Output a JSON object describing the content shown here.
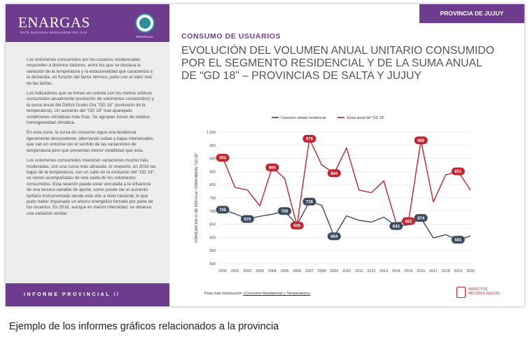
{
  "slide": {
    "logo_text": "ENARGAS",
    "logo_subtext": "ENTE NACIONAL REGULADOR DEL GAS",
    "seal_caption": "PROVINCIAS",
    "province_tab": "PROVINCIA DE JUJUY",
    "section_label": "CONSUMO DE USUARIOS",
    "title": "EVOLUCIÓN DEL VOLUMEN ANUAL UNITARIO CONSUMIDO POR EL SEGMENTO RESIDENCIAL Y DE LA SUMA ANUAL DE “GD 18” – PROVINCIAS DE SALTA Y JUJUY",
    "paragraphs": [
      "Los volúmenes consumidos por los usuarios residenciales responden a distintos factores, entre los que se destaca la variación de la temperatura y la estacionalidad que caracteriza a la demanda, en función del factor térmico, junto con el valor real de las tarifas.",
      "Los indicadores que se toman en cuenta son los metros cúbicos consumidos anualmente (evolución de volúmenes consumidos) y la suma anual del Déficit Grado Día \"GD 18\" (evolución de la temperatura). Un aumento del \"GD 18\" trae aparejado condiciones climáticas más frías. Se agrupan zonas de relativa homogeneidad climática.",
      "En esta zona, la curva de consumo sigue una tendencia ligeramente descendente, alternando subas y bajas interanuales, que van en sintonía con el sentido de las variaciones de temperatura pero que presentan menor volatilidad que esta.",
      "Los volúmenes consumidos muestran variaciones mucho más moderadas, con una curva más alineada. Al respecto, en 2016 las bajas de la temperatura, con un salto en la evolución del \"GD 18\", se vieron acompañadas de una caída de los volúmenes consumidos. Esta relación puede estar vinculada a la influencia de una tercera variable de ajuste, como puede ser el aumento tarifario instrumentado desde este año a nivel nacional, lo que pudo haber impulsado un ahorro energético forzado por parte de los usuarios. En 2018, aunque en menor intensidad, se observa una variación similar."
    ],
    "footer_label": "INFORME PROVINCIAL //",
    "more_info_prefix": "Para más información ",
    "more_info_link": "«Consumo Residencial y Temperatura»",
    "aspects_line1": "ASPECTOS",
    "aspects_line2": "METODOLÓGICOS"
  },
  "page_caption": "Ejemplo de los informes gráficos relacionados a la provincia",
  "colors": {
    "purple": "#6d3c8e",
    "series_consumo": "#3a4a5e",
    "series_gd18": "#c4222d"
  },
  "chart_data": {
    "type": "line",
    "x": [
      2000,
      2001,
      2002,
      2003,
      2004,
      2005,
      2006,
      2007,
      2008,
      2009,
      2010,
      2011,
      2012,
      2013,
      2014,
      2015,
      2016,
      2017,
      2018,
      2019,
      2020
    ],
    "ylabel": "CONSUMO EN m³ DE 9300 Kcal / SUMA ANUAL \"GD 18\"",
    "ylim": [
      500,
      1000
    ],
    "yticks": [
      500,
      550,
      600,
      650,
      700,
      750,
      800,
      850,
      900,
      950,
      1000
    ],
    "ytick_labels": [
      "500",
      "550",
      "600",
      "650",
      "700",
      "750",
      "800",
      "850",
      "900",
      "950",
      "1.000"
    ],
    "grid": true,
    "legend_position": "top-center",
    "series": [
      {
        "name": "Consumo unitario residencial",
        "color": "#3a4a5e",
        "values": [
          705,
          690,
          670,
          680,
          688,
          700,
          648,
          736,
          722,
          604,
          682,
          665,
          658,
          677,
          643,
          648,
          674,
          598,
          610,
          591,
          605
        ],
        "labeled_indices": [
          0,
          2,
          5,
          7,
          9,
          14,
          16,
          19
        ]
      },
      {
        "name": "Suma anual del \"GD 18\"",
        "color": "#c4222d",
        "values": [
          903,
          790,
          780,
          720,
          866,
          825,
          645,
          975,
          875,
          844,
          940,
          780,
          770,
          815,
          655,
          662,
          969,
          735,
          838,
          851,
          780
        ],
        "labeled_indices": [
          0,
          4,
          6,
          7,
          9,
          15,
          16,
          19
        ]
      }
    ]
  }
}
